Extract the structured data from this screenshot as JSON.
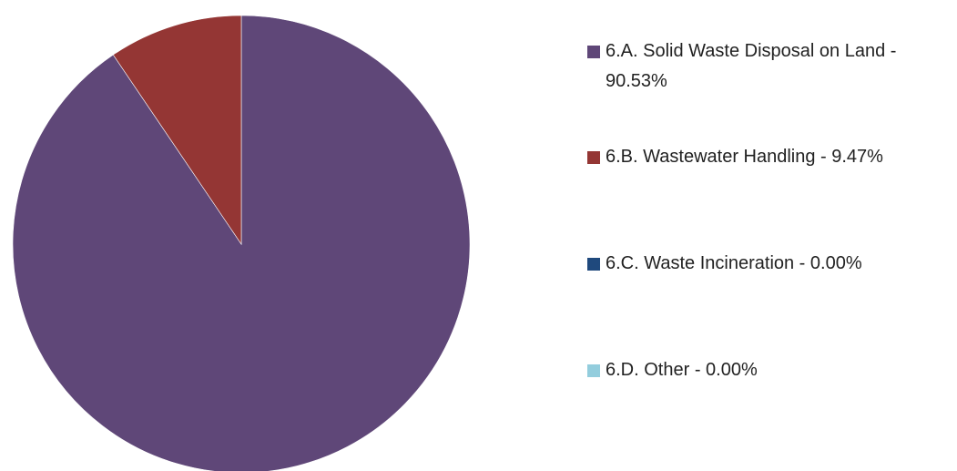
{
  "chart_data": {
    "type": "pie",
    "categories": [
      "6.A. Solid Waste Disposal on Land - 90.53%",
      "6.B. Wastewater Handling - 9.47%",
      "6.C. Waste Incineration - 0.00%",
      "6.D. Other - 0.00%"
    ],
    "values": [
      90.53,
      9.47,
      0,
      0
    ],
    "colors": [
      "#5f4778",
      "#943634",
      "#1f497d",
      "#93cddd"
    ],
    "legend": "right"
  }
}
